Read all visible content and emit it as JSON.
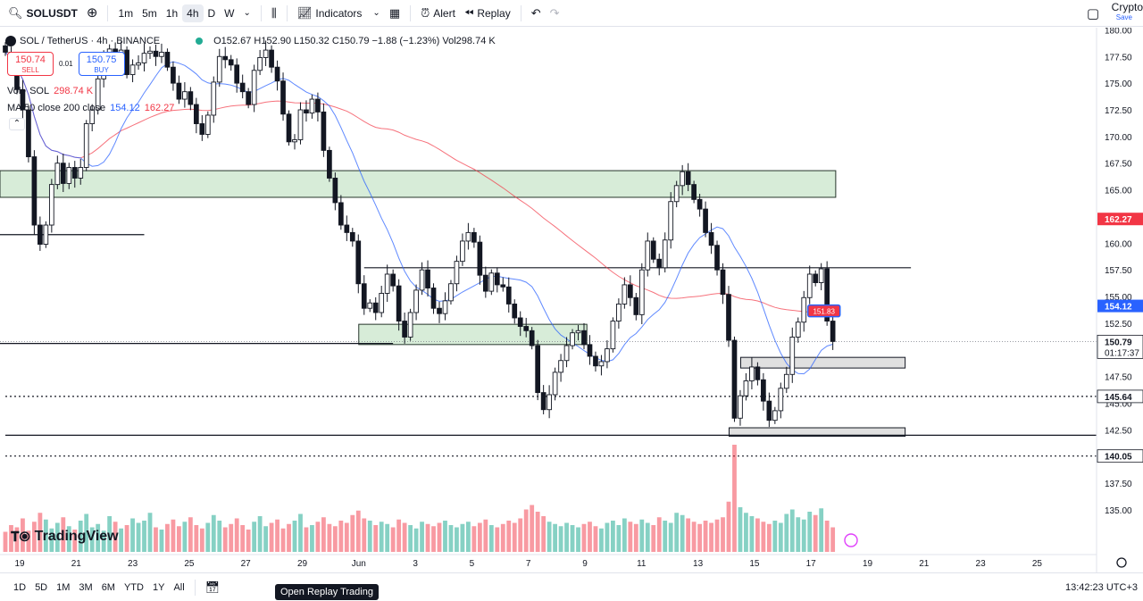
{
  "topbar": {
    "symbol": "SOLUSDT",
    "intervals": [
      "1m",
      "5m",
      "1h",
      "4h",
      "D",
      "W"
    ],
    "active_interval": "4h",
    "indicators_label": "Indicators",
    "alert_label": "Alert",
    "replay_label": "Replay",
    "right_label": "Crypto",
    "right_sub": "Save"
  },
  "legend": {
    "title": "SOL / TetherUS · 4h · BINANCE",
    "ohlc": "O152.67 H152.90 L150.32 C150.79 −1.88 (−1.23%) Vol298.74 K"
  },
  "trade": {
    "sell_price": "150.74",
    "sell_label": "SELL",
    "spread": "0.01",
    "buy_price": "150.75",
    "buy_label": "BUY"
  },
  "indicators": {
    "vol_label": "Vol · SOL",
    "vol_value": "298.74 K",
    "ma_label": "MA 50 close 200 close",
    "ma50_value": "154.12",
    "ma200_value": "162.27"
  },
  "logo_text": "TradingView",
  "bottombar": {
    "ranges": [
      "1D",
      "5D",
      "1M",
      "3M",
      "6M",
      "YTD",
      "1Y",
      "All"
    ],
    "tooltip": "Open Replay Trading",
    "clock": "13:42:23 UTC+3"
  },
  "chart_data": {
    "type": "candlestick",
    "symbol": "SOL / TetherUS",
    "interval": "4h",
    "exchange": "BINANCE",
    "ylim": [
      130.9,
      180.2
    ],
    "price_ticks": [
      135,
      137.5,
      140,
      142.5,
      145,
      147.5,
      150,
      152.5,
      155,
      157.5,
      160,
      162.5,
      165,
      167.5,
      170,
      172.5,
      175,
      177.5,
      180
    ],
    "x_ticks": [
      "19",
      "21",
      "23",
      "25",
      "27",
      "29",
      "Jun",
      "3",
      "5",
      "7",
      "9",
      "11",
      "13",
      "15",
      "17",
      "19",
      "21",
      "23",
      "25"
    ],
    "price_labels": [
      {
        "value": 162.27,
        "text": "162.27",
        "color": "#f23645"
      },
      {
        "value": 154.12,
        "text": "154.12",
        "color": "#2962ff"
      },
      {
        "value": 150.79,
        "text": "150.79",
        "sub": "01:17:37",
        "color": "#131722"
      },
      {
        "value": 145.64,
        "text": "145.64",
        "color": "#131722"
      },
      {
        "value": 140.05,
        "text": "140.05",
        "color": "#131722"
      }
    ],
    "volume_label": "298.74K",
    "price_marker": "151.83",
    "series": [
      {
        "name": "SOL",
        "points": [
          [
            0,
            177.9
          ],
          [
            1,
            176.7
          ],
          [
            2,
            174.4
          ],
          [
            3,
            172.5
          ],
          [
            4,
            168.1
          ],
          [
            5,
            161.7
          ],
          [
            6,
            159.9
          ],
          [
            7,
            161.7
          ],
          [
            8,
            165.5
          ],
          [
            9,
            167.5
          ],
          [
            10,
            165.6
          ],
          [
            11,
            167.1
          ],
          [
            12,
            166.1
          ],
          [
            13,
            167.1
          ],
          [
            14,
            171.2
          ],
          [
            15,
            172.5
          ],
          [
            16,
            175.4
          ],
          [
            17,
            177.2
          ],
          [
            18,
            178.2
          ],
          [
            19,
            177.1
          ],
          [
            20,
            178.1
          ],
          [
            21,
            175.8
          ],
          [
            22,
            176.7
          ],
          [
            23,
            176.9
          ],
          [
            24,
            177.8
          ],
          [
            25,
            178.0
          ],
          [
            26,
            177.5
          ],
          [
            27,
            177.9
          ],
          [
            28,
            176.5
          ],
          [
            29,
            175.0
          ],
          [
            30,
            173.5
          ],
          [
            31,
            174.2
          ],
          [
            32,
            173.0
          ],
          [
            33,
            171.2
          ],
          [
            34,
            170.2
          ],
          [
            35,
            172.0
          ],
          [
            36,
            175.1
          ],
          [
            37,
            177.5
          ],
          [
            38,
            177.2
          ],
          [
            39,
            176.7
          ],
          [
            40,
            175.0
          ],
          [
            41,
            174.2
          ],
          [
            42,
            173.0
          ],
          [
            43,
            176.2
          ],
          [
            44,
            177.4
          ],
          [
            45,
            178.1
          ],
          [
            46,
            176.5
          ],
          [
            47,
            175.2
          ],
          [
            48,
            172.1
          ],
          [
            49,
            169.5
          ],
          [
            50,
            169.7
          ],
          [
            51,
            172.5
          ],
          [
            52,
            172.2
          ],
          [
            53,
            173.5
          ],
          [
            54,
            172.3
          ],
          [
            55,
            168.7
          ],
          [
            56,
            166.1
          ],
          [
            57,
            163.8
          ],
          [
            58,
            161.7
          ],
          [
            59,
            161.0
          ],
          [
            60,
            160.2
          ],
          [
            61,
            156.2
          ],
          [
            62,
            153.9
          ],
          [
            63,
            154.4
          ],
          [
            64,
            153.5
          ],
          [
            65,
            155.3
          ],
          [
            66,
            157.1
          ],
          [
            67,
            156.0
          ],
          [
            68,
            152.7
          ],
          [
            69,
            151.2
          ],
          [
            70,
            153.5
          ],
          [
            71,
            155.6
          ],
          [
            72,
            157.5
          ],
          [
            73,
            155.8
          ],
          [
            74,
            153.9
          ],
          [
            75,
            153.4
          ],
          [
            76,
            154.6
          ],
          [
            77,
            156.2
          ],
          [
            78,
            158.3
          ],
          [
            79,
            160.2
          ],
          [
            80,
            161.0
          ],
          [
            81,
            160.1
          ],
          [
            82,
            157.0
          ],
          [
            83,
            155.5
          ],
          [
            84,
            157.2
          ],
          [
            85,
            156.1
          ],
          [
            86,
            155.9
          ],
          [
            87,
            154.3
          ],
          [
            88,
            153.0
          ],
          [
            89,
            152.2
          ],
          [
            90,
            151.8
          ],
          [
            91,
            150.4
          ],
          [
            92,
            146.0
          ],
          [
            93,
            144.4
          ],
          [
            94,
            145.8
          ],
          [
            95,
            147.9
          ],
          [
            96,
            149.0
          ],
          [
            97,
            150.4
          ],
          [
            98,
            151.6
          ],
          [
            99,
            151.8
          ],
          [
            100,
            150.5
          ],
          [
            101,
            149.4
          ],
          [
            102,
            148.5
          ],
          [
            103,
            148.9
          ],
          [
            104,
            150.1
          ],
          [
            105,
            152.7
          ],
          [
            106,
            154.3
          ],
          [
            107,
            156.1
          ],
          [
            108,
            154.9
          ],
          [
            109,
            153.3
          ],
          [
            110,
            157.5
          ],
          [
            111,
            160.2
          ],
          [
            112,
            158.5
          ],
          [
            113,
            157.7
          ],
          [
            114,
            160.3
          ],
          [
            115,
            163.9
          ],
          [
            116,
            165.4
          ],
          [
            117,
            166.7
          ],
          [
            118,
            165.5
          ],
          [
            119,
            164.1
          ],
          [
            120,
            163.2
          ],
          [
            121,
            161.0
          ],
          [
            122,
            159.8
          ],
          [
            123,
            157.5
          ],
          [
            124,
            155.2
          ],
          [
            125,
            150.9
          ],
          [
            126,
            143.6
          ],
          [
            127,
            145.7
          ],
          [
            128,
            147.1
          ],
          [
            129,
            148.4
          ],
          [
            130,
            147.2
          ],
          [
            131,
            145.2
          ],
          [
            132,
            143.4
          ],
          [
            133,
            144.3
          ],
          [
            134,
            146.4
          ],
          [
            135,
            147.7
          ],
          [
            136,
            151.2
          ],
          [
            137,
            152.6
          ],
          [
            138,
            154.9
          ],
          [
            139,
            157.1
          ],
          [
            140,
            156.3
          ],
          [
            141,
            157.6
          ],
          [
            142,
            152.7
          ],
          [
            143,
            150.79
          ]
        ]
      },
      {
        "name": "Volume",
        "values": [
          18,
          24,
          22,
          30,
          19,
          27,
          35,
          29,
          21,
          26,
          31,
          23,
          20,
          28,
          34,
          22,
          25,
          19,
          32,
          27,
          21,
          24,
          30,
          26,
          28,
          35,
          22,
          20,
          25,
          29,
          23,
          27,
          31,
          24,
          21,
          26,
          33,
          28,
          22,
          25,
          30,
          24,
          20,
          27,
          32,
          23,
          26,
          29,
          21,
          25,
          28,
          34,
          22,
          24,
          27,
          31,
          25,
          23,
          28,
          26,
          33,
          37,
          30,
          28,
          24,
          27,
          25,
          22,
          29,
          26,
          24,
          21,
          27,
          25,
          23,
          26,
          28,
          24,
          22,
          25,
          27,
          23,
          26,
          29,
          24,
          22,
          25,
          28,
          26,
          30,
          38,
          42,
          36,
          32,
          27,
          25,
          23,
          26,
          24,
          22,
          25,
          27,
          23,
          21,
          26,
          28,
          24,
          30,
          27,
          25,
          29,
          26,
          24,
          31,
          28,
          26,
          35,
          33,
          30,
          27,
          25,
          28,
          26,
          29,
          31,
          45,
          96,
          40,
          35,
          32,
          30,
          27,
          25,
          28,
          26,
          34,
          38,
          31,
          29,
          36,
          33,
          39,
          28,
          22
        ]
      }
    ]
  }
}
